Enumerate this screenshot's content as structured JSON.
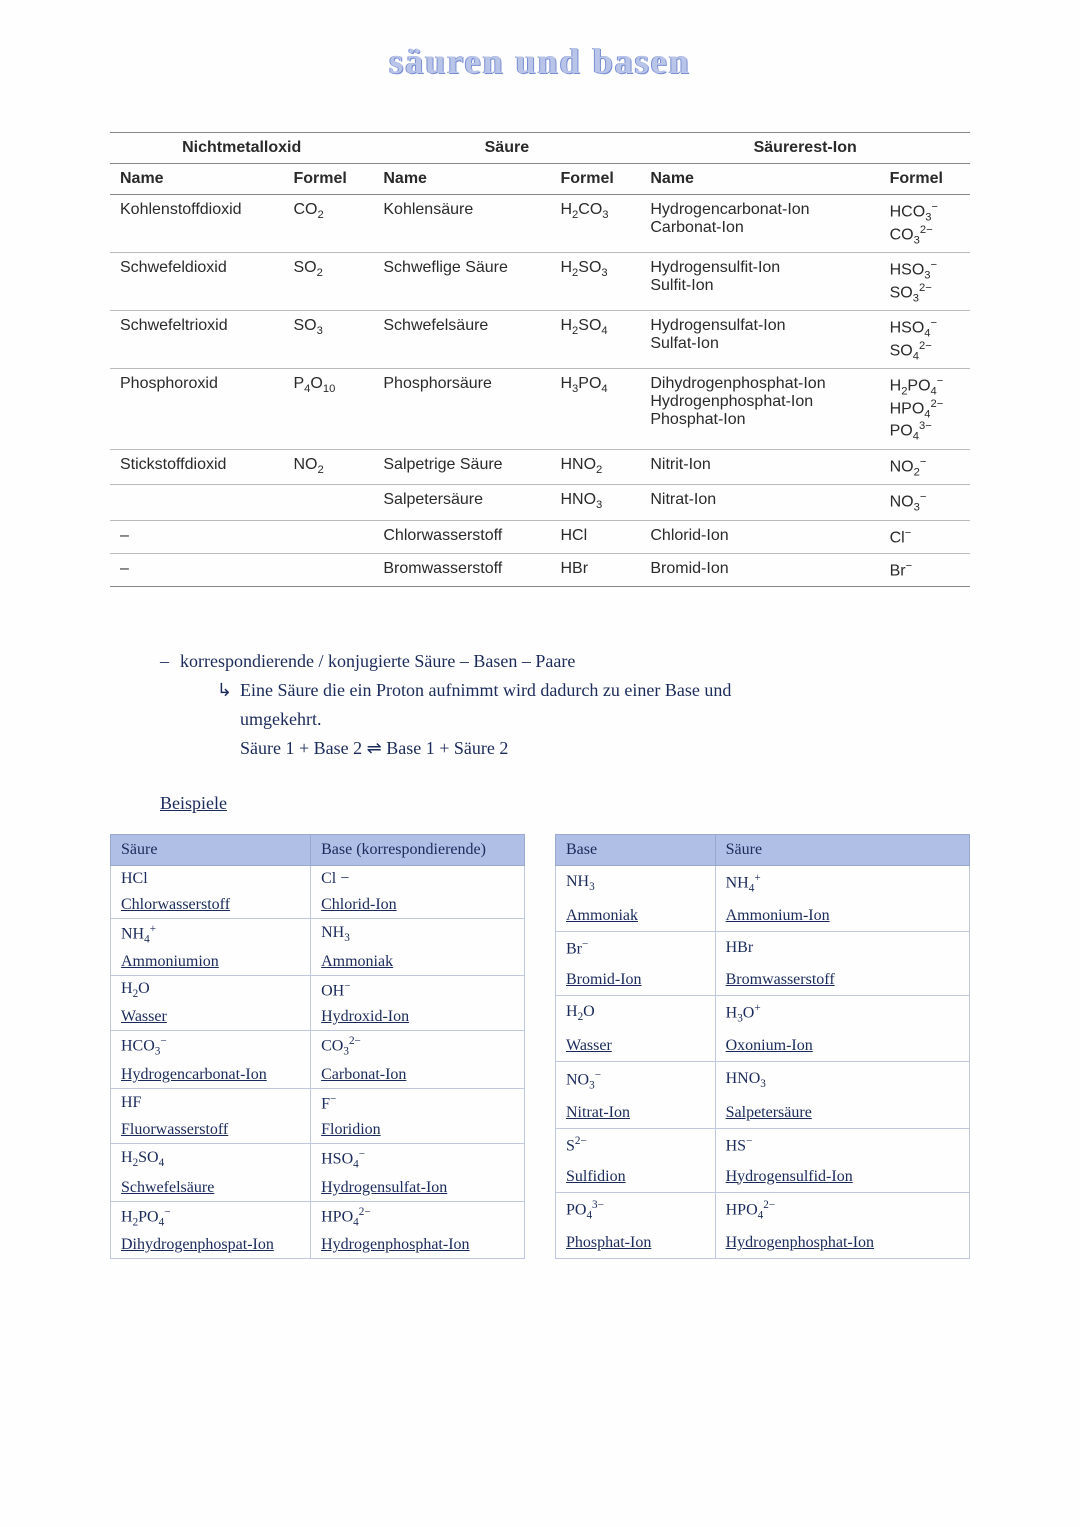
{
  "title": "säuren und basen",
  "mainTable": {
    "groupHeaders": [
      "Nichtmetalloxid",
      "Säure",
      "Säurerest-Ion"
    ],
    "subHeaders": [
      "Name",
      "Formel",
      "Name",
      "Formel",
      "Name",
      "Formel"
    ],
    "rows": [
      {
        "oxideName": "Kohlenstoffdioxid",
        "oxideFormula": "CO<sub>2</sub>",
        "acidName": "Kohlensäure",
        "acidFormula": "H<sub>2</sub>CO<sub>3</sub>",
        "ionName": "Hydrogencarbonat-Ion<br>Carbonat-Ion",
        "ionFormula": "HCO<sub>3</sub><sup>−</sup><br>CO<sub>3</sub><sup>2−</sup>"
      },
      {
        "oxideName": "Schwefeldioxid",
        "oxideFormula": "SO<sub>2</sub>",
        "acidName": "Schweflige Säure",
        "acidFormula": "H<sub>2</sub>SO<sub>3</sub>",
        "ionName": "Hydrogensulfit-Ion<br>Sulfit-Ion",
        "ionFormula": "HSO<sub>3</sub><sup>−</sup><br>SO<sub>3</sub><sup>2−</sup>"
      },
      {
        "oxideName": "Schwefeltrioxid",
        "oxideFormula": "SO<sub>3</sub>",
        "acidName": "Schwefelsäure",
        "acidFormula": "H<sub>2</sub>SO<sub>4</sub>",
        "ionName": "Hydrogensulfat-Ion<br>Sulfat-Ion",
        "ionFormula": "HSO<sub>4</sub><sup>−</sup><br>SO<sub>4</sub><sup>2−</sup>"
      },
      {
        "oxideName": "Phosphoroxid",
        "oxideFormula": "P<sub>4</sub>O<sub>10</sub>",
        "acidName": "Phosphorsäure",
        "acidFormula": "H<sub>3</sub>PO<sub>4</sub>",
        "ionName": "Dihydrogenphosphat-Ion<br>Hydrogenphosphat-Ion<br>Phosphat-Ion",
        "ionFormula": "H<sub>2</sub>PO<sub>4</sub><sup>−</sup><br>HPO<sub>4</sub><sup>2−</sup><br>PO<sub>4</sub><sup>3−</sup>"
      },
      {
        "oxideName": "Stickstoffdioxid",
        "oxideFormula": "NO<sub>2</sub>",
        "acidName": "Salpetrige Säure",
        "acidFormula": "HNO<sub>2</sub>",
        "ionName": "Nitrit-Ion",
        "ionFormula": "NO<sub>2</sub><sup>−</sup>"
      },
      {
        "oxideName": "",
        "oxideFormula": "",
        "acidName": "Salpetersäure",
        "acidFormula": "HNO<sub>3</sub>",
        "ionName": "Nitrat-Ion",
        "ionFormula": "NO<sub>3</sub><sup>−</sup>"
      },
      {
        "oxideName": "–",
        "oxideFormula": "",
        "acidName": "Chlorwasserstoff",
        "acidFormula": "HCl",
        "ionName": "Chlorid-Ion",
        "ionFormula": "Cl<sup>−</sup>"
      },
      {
        "oxideName": "–",
        "oxideFormula": "",
        "acidName": "Bromwasserstoff",
        "acidFormula": "HBr",
        "ionName": "Bromid-Ion",
        "ionFormula": "Br<sup>−</sup>"
      }
    ]
  },
  "notes": {
    "line1": "korrespondierende / konjugierte  Säure – Basen – Paare",
    "line2": "Eine Säure die ein Proton aufnimmt wird dadurch  zu einer Base  und",
    "line3": "umgekehrt.",
    "equation": "Säure 1 + Base 2 ⇌ Base 1 + Säure 2"
  },
  "examplesTitle": "Beispiele",
  "leftTable": {
    "headers": [
      "Säure",
      "Base (korrespondierende)"
    ],
    "pairs": [
      {
        "leftF": "HCl",
        "rightF": "Cl −",
        "leftN": "Chlorwasserstoff",
        "rightN": "Chlorid-Ion"
      },
      {
        "leftF": "NH<sub>4</sub><sup>+</sup>",
        "rightF": "NH<sub>3</sub>",
        "leftN": "Ammoniumion",
        "rightN": "Ammoniak"
      },
      {
        "leftF": "H<sub>2</sub>O",
        "rightF": "OH<sup>−</sup>",
        "leftN": "Wasser",
        "rightN": "Hydroxid-Ion"
      },
      {
        "leftF": "HCO<sub>3</sub><sup>−</sup>",
        "rightF": "CO<sub>3</sub><sup>2−</sup>",
        "leftN": "Hydrogencarbonat-Ion",
        "rightN": "Carbonat-Ion"
      },
      {
        "leftF": "HF",
        "rightF": "F<sup>−</sup>",
        "leftN": "Fluorwasserstoff",
        "rightN": "Floridion"
      },
      {
        "leftF": "H<sub>2</sub>SO<sub>4</sub>",
        "rightF": "HSO<sub>4</sub><sup>−</sup>",
        "leftN": "Schwefelsäure",
        "rightN": "Hydrogensulfat-Ion"
      },
      {
        "leftF": "H<sub>2</sub>PO<sub>4</sub><sup>−</sup>",
        "rightF": "HPO<sub>4</sub><sup>2−</sup>",
        "leftN": "Dihydrogenphospat-Ion",
        "rightN": "Hydrogenphosphat-Ion"
      }
    ]
  },
  "rightTable": {
    "headers": [
      "Base",
      "Säure"
    ],
    "pairs": [
      {
        "leftF": "NH<sub>3</sub>",
        "rightF": "NH<sub>4</sub><sup>+</sup>",
        "leftN": "Ammoniak",
        "rightN": "Ammonium-Ion"
      },
      {
        "leftF": "Br<sup>−</sup>",
        "rightF": "HBr",
        "leftN": "Bromid-Ion",
        "rightN": "Bromwasserstoff"
      },
      {
        "leftF": "H<sub>2</sub>O",
        "rightF": "H<sub>3</sub>O<sup>+</sup>",
        "leftN": "Wasser",
        "rightN": "Oxonium-Ion"
      },
      {
        "leftF": "NO<sub>3</sub><sup>−</sup>",
        "rightF": "HNO<sub>3</sub>",
        "leftN": "Nitrat-Ion",
        "rightN": "Salpetersäure"
      },
      {
        "leftF": "S<sup>2−</sup>",
        "rightF": "HS<sup>−</sup>",
        "leftN": "Sulfidion",
        "rightN": "Hydrogensulfid-Ion"
      },
      {
        "leftF": "PO<sub>4</sub><sup>3−</sup>",
        "rightF": "HPO<sub>4</sub><sup>2−</sup>",
        "leftN": "Phosphat-Ion",
        "rightN": "Hydrogenphosphat-Ion"
      }
    ]
  }
}
